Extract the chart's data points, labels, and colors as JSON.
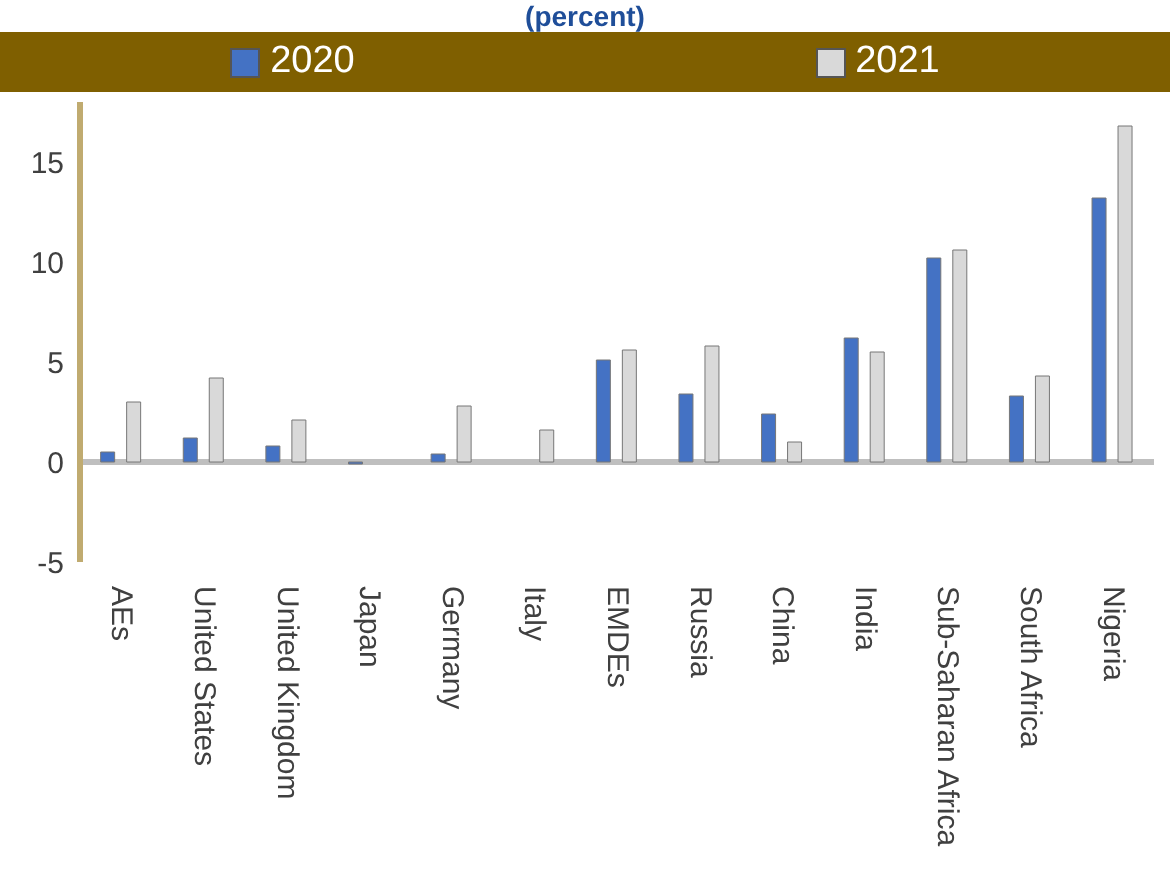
{
  "chart_data": {
    "type": "bar",
    "title": "(percent)",
    "categories": [
      "AEs",
      "United States",
      "United Kingdom",
      "Japan",
      "Germany",
      "Italy",
      "EMDEs",
      "Russia",
      "China",
      "India",
      "Sub-Saharan Africa",
      "South Africa",
      "Nigeria"
    ],
    "series": [
      {
        "name": "2020",
        "color": "#4472c4",
        "values": [
          0.5,
          1.2,
          0.8,
          -0.1,
          0.4,
          0,
          5.1,
          3.4,
          2.4,
          6.2,
          10.2,
          3.3,
          13.2
        ]
      },
      {
        "name": "2021",
        "color": "#d9d9d9",
        "values": [
          3.0,
          4.2,
          2.1,
          0,
          2.8,
          1.6,
          5.6,
          5.8,
          1.0,
          5.5,
          10.6,
          4.3,
          16.8
        ]
      }
    ],
    "ylim": [
      -5,
      18
    ],
    "yticks": [
      -5,
      0,
      5,
      10,
      15
    ],
    "grid": false,
    "legend": "top"
  }
}
